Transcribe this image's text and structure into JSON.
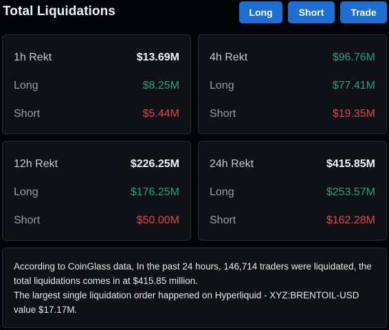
{
  "header": {
    "title": "Total Liquidations",
    "buttons": {
      "long": "Long",
      "short": "Short",
      "trade": "Trade"
    }
  },
  "cards": [
    {
      "period": "1h Rekt",
      "total": "$13.69M",
      "long_label": "Long",
      "long": "$8.25M",
      "short_label": "Short",
      "short": "$5.44M"
    },
    {
      "period": "4h Rekt",
      "total": "$96.76M",
      "long_label": "Long",
      "long": "$77.41M",
      "short_label": "Short",
      "short": "$19.35M"
    },
    {
      "period": "12h Rekt",
      "total": "$226.25M",
      "long_label": "Long",
      "long": "$176.25M",
      "short_label": "Short",
      "short": "$50.00M"
    },
    {
      "period": "24h Rekt",
      "total": "$415.85M",
      "long_label": "Long",
      "long": "$253.57M",
      "short_label": "Short",
      "short": "$162.28M"
    }
  ],
  "summary": {
    "line1": "According to CoinGlass data, In the past 24 hours, 146,714 traders were liquidated, the total liquidations comes in at $415.85 million.",
    "line2": "The largest single liquidation order happened on Hyperliquid - XYZ:BRENTOIL-USD value $17.17M."
  },
  "colors": {
    "accent": "#1f6fd1",
    "green": "#26a17b",
    "red": "#e0454f",
    "background": "#030407",
    "card": "#0f1117"
  }
}
